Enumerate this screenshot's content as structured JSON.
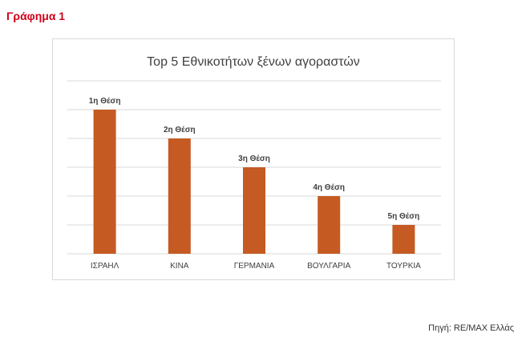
{
  "page": {
    "heading": "Γράφημα 1",
    "source": "Πηγή: RE/MAX Ελλάς"
  },
  "colors": {
    "heading": "#d0021b",
    "bar": "#c55a22",
    "grid": "#d9d9d9",
    "title": "#404040",
    "label": "#404040"
  },
  "chart_data": {
    "type": "bar",
    "title": "Top 5 Εθνικοτήτων ξένων αγοραστών",
    "xlabel": "",
    "ylabel": "",
    "categories": [
      "ΙΣΡΑΗΛ",
      "ΚΙΝΑ",
      "ΓΕΡΜΑΝΙΑ",
      "ΒΟΥΛΓΑΡΙΑ",
      "ΤΟΥΡΚΙΑ"
    ],
    "values": [
      5,
      4,
      3,
      2,
      1
    ],
    "data_labels": [
      "1η Θέση",
      "2η Θέση",
      "3η Θέση",
      "4η Θέση",
      "5η Θέση"
    ],
    "ylim": [
      0,
      6
    ],
    "grid": true,
    "legend": "none"
  }
}
